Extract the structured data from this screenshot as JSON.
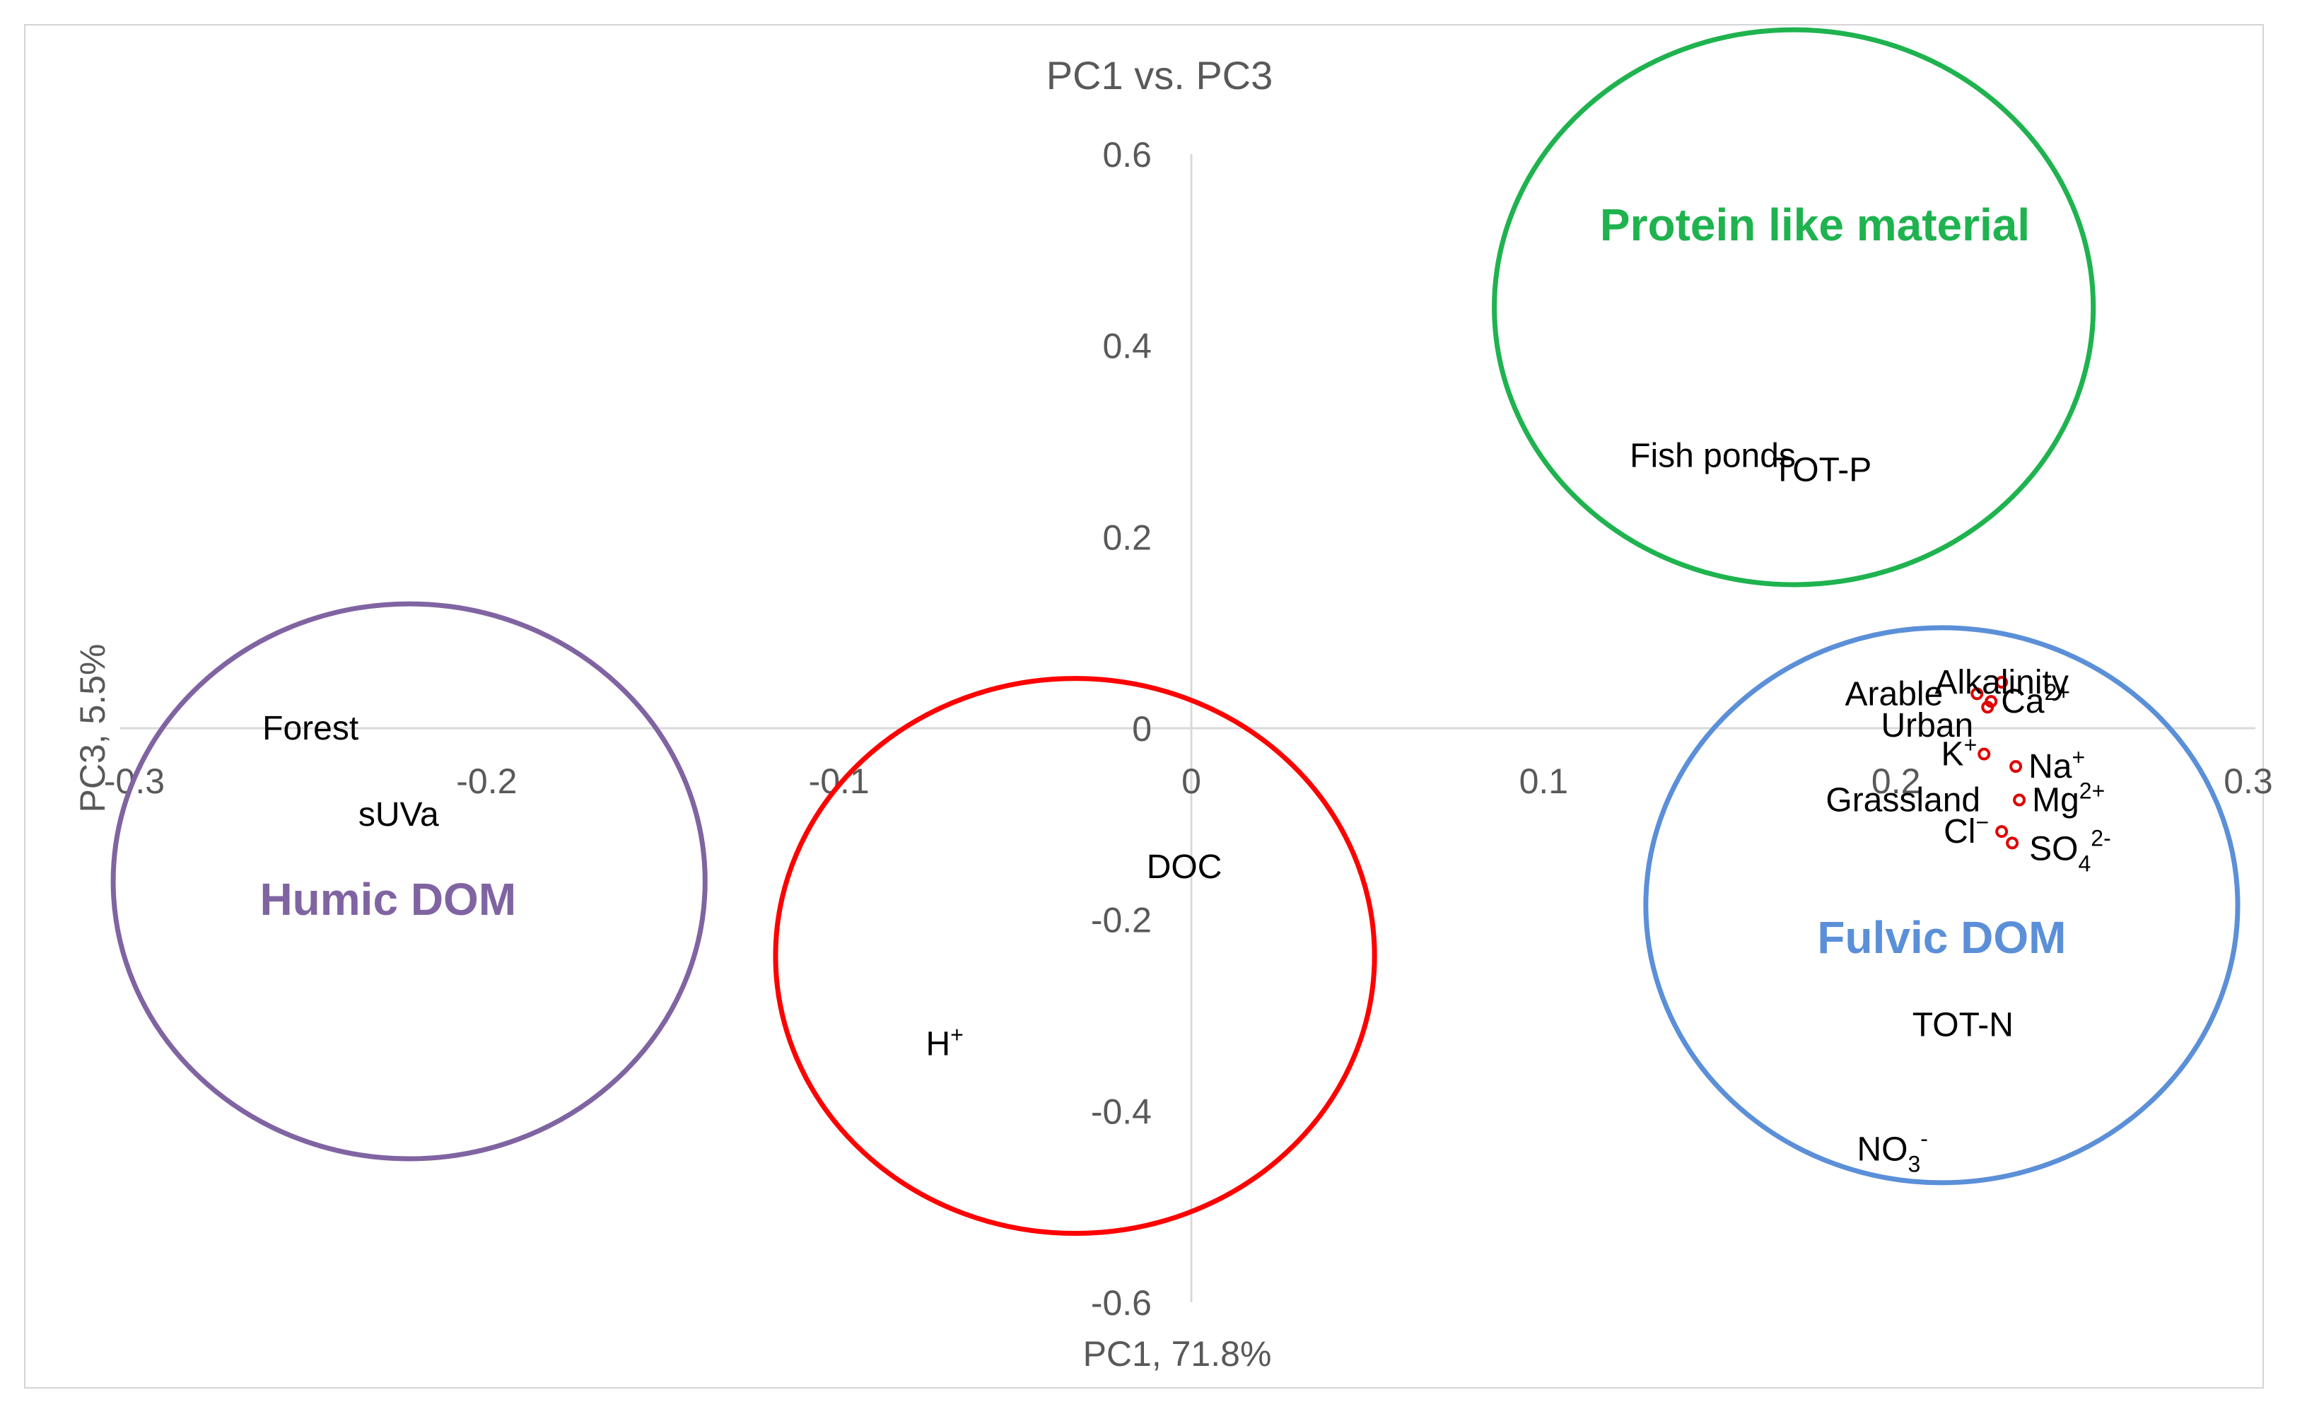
{
  "chart_data": {
    "type": "scatter",
    "title": "PC1 vs. PC3",
    "xlabel": "PC1, 71.8%",
    "ylabel": "PC3, 5.5%",
    "xlim": [
      -0.3,
      0.3
    ],
    "ylim": [
      -0.6,
      0.6
    ],
    "xticks": [
      -0.3,
      -0.2,
      -0.1,
      0,
      0.1,
      0.2,
      0.3
    ],
    "yticks": [
      -0.6,
      -0.4,
      -0.2,
      0,
      0.2,
      0.4,
      0.6
    ],
    "xtick_labels": [
      "-0.3",
      "-0.2",
      "-0.1",
      "0",
      "0.1",
      "0.2",
      "0.3"
    ],
    "ytick_labels": [
      "-0.6",
      "-0.4",
      "-0.2",
      "0",
      "0.2",
      "0.4",
      "0.6"
    ],
    "points": [
      {
        "label": "Forest",
        "x": -0.25,
        "y": 0.0
      },
      {
        "label": "sUVa",
        "x": -0.225,
        "y": -0.09
      },
      {
        "label": "DOC",
        "x": -0.002,
        "y": -0.145
      },
      {
        "label": "H+",
        "x": -0.07,
        "y": -0.33
      },
      {
        "label": "Fish ponds",
        "x": 0.148,
        "y": 0.285
      },
      {
        "label": "TOT-P",
        "x": 0.179,
        "y": 0.27
      },
      {
        "label": "TOT-N",
        "x": 0.219,
        "y": -0.31
      },
      {
        "label": "NO3-",
        "x": 0.199,
        "y": -0.44
      },
      {
        "label": "Alkalinity",
        "x": 0.23,
        "y": 0.048
      },
      {
        "label": "Arable",
        "x": 0.223,
        "y": 0.036
      },
      {
        "label": "Ca2+",
        "x": 0.227,
        "y": 0.028
      },
      {
        "label": "Urban",
        "x": 0.226,
        "y": 0.022
      },
      {
        "label": "K+",
        "x": 0.225,
        "y": -0.027
      },
      {
        "label": "Na+",
        "x": 0.234,
        "y": -0.04
      },
      {
        "label": "Grassland",
        "x": 0.232,
        "y": -0.075
      },
      {
        "label": "Mg2+",
        "x": 0.235,
        "y": -0.075
      },
      {
        "label": "Cl-",
        "x": 0.23,
        "y": -0.108
      },
      {
        "label": "SO42-",
        "x": 0.233,
        "y": -0.12
      }
    ],
    "groups": [
      {
        "name": "Protein like material",
        "color": "#1fb34f",
        "cx": 0.171,
        "cy": 0.44,
        "rx": 0.085,
        "ry": 0.29
      },
      {
        "name": "Humic DOM",
        "color": "#8064a2",
        "cx": -0.222,
        "cy": -0.16,
        "rx": 0.084,
        "ry": 0.29
      },
      {
        "name": "",
        "color": "#ff0000",
        "cx": -0.033,
        "cy": -0.238,
        "rx": 0.085,
        "ry": 0.29
      },
      {
        "name": "Fulvic DOM",
        "color": "#5b8fd8",
        "cx": 0.213,
        "cy": -0.185,
        "rx": 0.084,
        "ry": 0.29
      }
    ],
    "axis_color": "#d9d9d9",
    "marker_color": "#e00000"
  },
  "labels": {
    "forest": "Forest",
    "suva": "sUVa",
    "doc": "DOC",
    "h_base": "H",
    "h_sup": "+",
    "fish_ponds": "Fish ponds",
    "tot_p": "TOT-P",
    "tot_n": "TOT-N",
    "no3_base": "NO",
    "no3_sub": "3",
    "no3_sup": "-",
    "alkalinity": "Alkalinity",
    "arable": "Arable",
    "ca_base": "Ca",
    "ca_sup": "2+",
    "urban": "Urban",
    "k_base": "K",
    "k_sup": "+",
    "na_base": "Na",
    "na_sup": "+",
    "grassland": "Grassland",
    "mg_base": "Mg",
    "mg_sup": "2+",
    "cl_base": "Cl",
    "cl_sup": "−",
    "so4_base": "SO",
    "so4_sub": "4",
    "so4_sup": "2-"
  }
}
